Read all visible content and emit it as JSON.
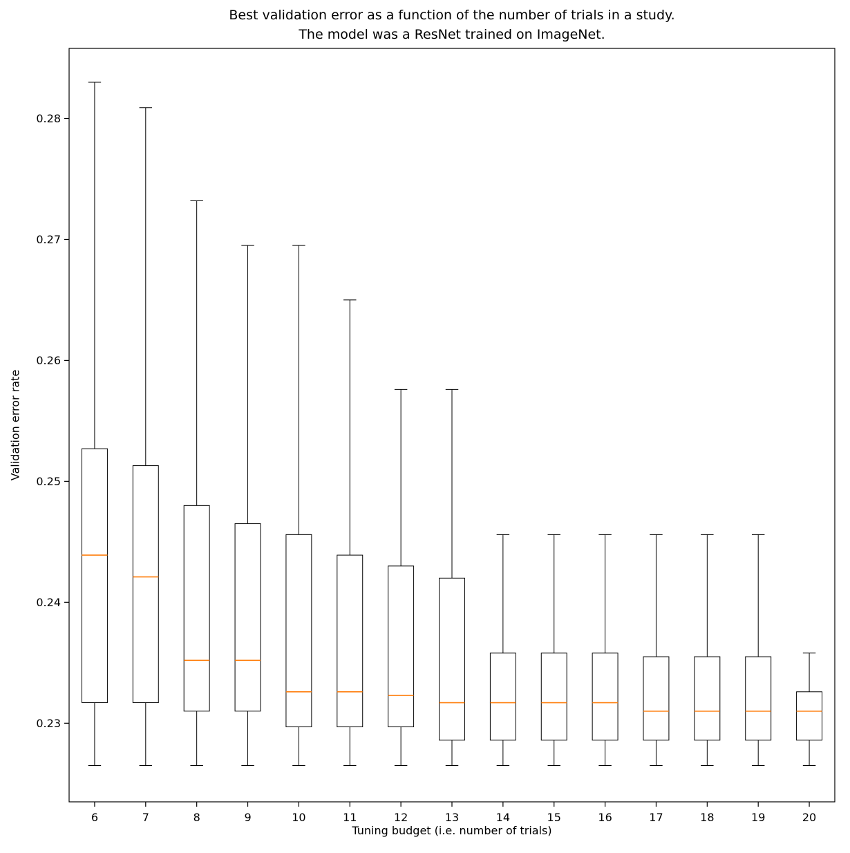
{
  "page": {
    "background": "#ffffff"
  },
  "chart_data": {
    "type": "boxplot",
    "title_line1": "Best validation error as a function of the number of trials in a study.",
    "title_line2": "The model was a ResNet trained on ImageNet.",
    "xlabel": "Tuning budget (i.e. number of trials)",
    "ylabel": "Validation error rate",
    "categories": [
      "6",
      "7",
      "8",
      "9",
      "10",
      "11",
      "12",
      "13",
      "14",
      "15",
      "16",
      "17",
      "18",
      "19",
      "20"
    ],
    "yticks": [
      0.23,
      0.24,
      0.25,
      0.26,
      0.27,
      0.28
    ],
    "ylim": [
      0.2235,
      0.2858
    ],
    "grid": false,
    "legend": "none",
    "box_outline_color": "#000000",
    "box_fill_color": "#ffffff",
    "median_color": "#ff7f0e",
    "boxes": [
      {
        "category": "6",
        "whisker_low": 0.2265,
        "q1": 0.2317,
        "median": 0.2439,
        "q3": 0.2527,
        "whisker_high": 0.283
      },
      {
        "category": "7",
        "whisker_low": 0.2265,
        "q1": 0.2317,
        "median": 0.2421,
        "q3": 0.2513,
        "whisker_high": 0.2809
      },
      {
        "category": "8",
        "whisker_low": 0.2265,
        "q1": 0.231,
        "median": 0.2352,
        "q3": 0.248,
        "whisker_high": 0.2732
      },
      {
        "category": "9",
        "whisker_low": 0.2265,
        "q1": 0.231,
        "median": 0.2352,
        "q3": 0.2465,
        "whisker_high": 0.2695
      },
      {
        "category": "10",
        "whisker_low": 0.2265,
        "q1": 0.2297,
        "median": 0.2326,
        "q3": 0.2456,
        "whisker_high": 0.2695
      },
      {
        "category": "11",
        "whisker_low": 0.2265,
        "q1": 0.2297,
        "median": 0.2326,
        "q3": 0.2439,
        "whisker_high": 0.265
      },
      {
        "category": "12",
        "whisker_low": 0.2265,
        "q1": 0.2297,
        "median": 0.2323,
        "q3": 0.243,
        "whisker_high": 0.2576
      },
      {
        "category": "13",
        "whisker_low": 0.2265,
        "q1": 0.2286,
        "median": 0.2317,
        "q3": 0.242,
        "whisker_high": 0.2576
      },
      {
        "category": "14",
        "whisker_low": 0.2265,
        "q1": 0.2286,
        "median": 0.2317,
        "q3": 0.2358,
        "whisker_high": 0.2456
      },
      {
        "category": "15",
        "whisker_low": 0.2265,
        "q1": 0.2286,
        "median": 0.2317,
        "q3": 0.2358,
        "whisker_high": 0.2456
      },
      {
        "category": "16",
        "whisker_low": 0.2265,
        "q1": 0.2286,
        "median": 0.2317,
        "q3": 0.2358,
        "whisker_high": 0.2456
      },
      {
        "category": "17",
        "whisker_low": 0.2265,
        "q1": 0.2286,
        "median": 0.231,
        "q3": 0.2355,
        "whisker_high": 0.2456
      },
      {
        "category": "18",
        "whisker_low": 0.2265,
        "q1": 0.2286,
        "median": 0.231,
        "q3": 0.2355,
        "whisker_high": 0.2456
      },
      {
        "category": "19",
        "whisker_low": 0.2265,
        "q1": 0.2286,
        "median": 0.231,
        "q3": 0.2355,
        "whisker_high": 0.2456
      },
      {
        "category": "20",
        "whisker_low": 0.2265,
        "q1": 0.2286,
        "median": 0.231,
        "q3": 0.2326,
        "whisker_high": 0.2358
      }
    ]
  }
}
